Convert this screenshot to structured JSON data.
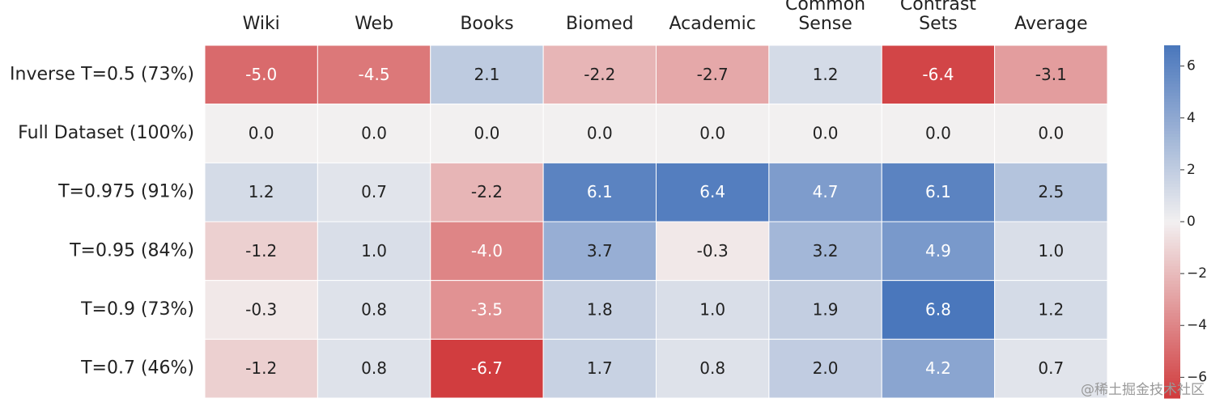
{
  "chart_data": {
    "type": "heatmap",
    "columns": [
      "Wiki",
      "Web",
      "Books",
      "Biomed",
      "Academic",
      [
        "Common",
        "Sense"
      ],
      [
        "Contrast",
        "Sets"
      ],
      "Average"
    ],
    "rows": [
      "Inverse T=0.5 (73%)",
      "Full Dataset (100%)",
      "T=0.975 (91%)",
      "T=0.95 (84%)",
      "T=0.9 (73%)",
      "T=0.7 (46%)"
    ],
    "values": [
      [
        -5.0,
        -4.5,
        2.1,
        -2.2,
        -2.7,
        1.2,
        -6.4,
        -3.1
      ],
      [
        0.0,
        0.0,
        0.0,
        0.0,
        0.0,
        0.0,
        0.0,
        0.0
      ],
      [
        1.2,
        0.7,
        -2.2,
        6.1,
        6.4,
        4.7,
        6.1,
        2.5
      ],
      [
        -1.2,
        1.0,
        -4.0,
        3.7,
        -0.3,
        3.2,
        4.9,
        1.0
      ],
      [
        -0.3,
        0.8,
        -3.5,
        1.8,
        1.0,
        1.9,
        6.8,
        1.2
      ],
      [
        -1.2,
        0.8,
        -6.7,
        1.7,
        0.8,
        2.0,
        4.2,
        0.7
      ]
    ],
    "value_labels": [
      [
        "-5.0",
        "-4.5",
        "2.1",
        "-2.2",
        "-2.7",
        "1.2",
        "-6.4",
        "-3.1"
      ],
      [
        "0.0",
        "0.0",
        "0.0",
        "0.0",
        "0.0",
        "0.0",
        "0.0",
        "0.0"
      ],
      [
        "1.2",
        "0.7",
        "-2.2",
        "6.1",
        "6.4",
        "4.7",
        "6.1",
        "2.5"
      ],
      [
        "-1.2",
        "1.0",
        "-4.0",
        "3.7",
        "-0.3",
        "3.2",
        "4.9",
        "1.0"
      ],
      [
        "-0.3",
        "0.8",
        "-3.5",
        "1.8",
        "1.0",
        "1.9",
        "6.8",
        "1.2"
      ],
      [
        "-1.2",
        "0.8",
        "-6.7",
        "1.7",
        "0.8",
        "2.0",
        "4.2",
        "0.7"
      ]
    ],
    "colormap": [
      "#d03a3c",
      "#f2f0f0",
      "#4a77bc"
    ],
    "clim": [
      -6.8,
      6.8
    ],
    "cticks": [
      {
        "value": 6,
        "label": "6"
      },
      {
        "value": 4,
        "label": "4"
      },
      {
        "value": 2,
        "label": "2"
      },
      {
        "value": 0,
        "label": "0"
      },
      {
        "value": -2,
        "label": "−2"
      },
      {
        "value": -4,
        "label": "−4"
      },
      {
        "value": -6,
        "label": "−6"
      }
    ]
  },
  "watermark": "@稀土掘金技术社区"
}
